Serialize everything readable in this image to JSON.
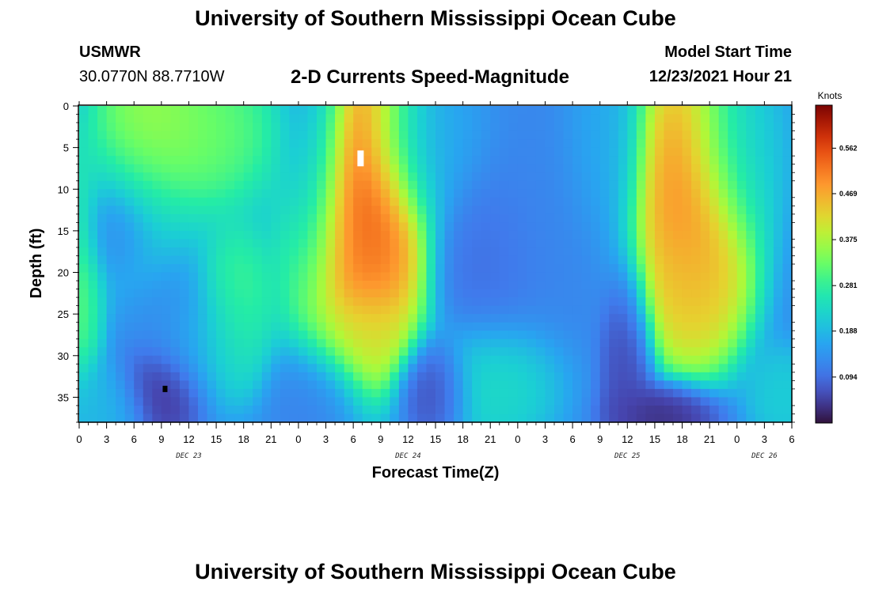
{
  "header": {
    "title": "University of Southern Mississippi Ocean Cube",
    "station": "USMWR",
    "coords": "30.0770N  88.7710W",
    "subtitle": "2-D Currents Speed-Magnitude",
    "start_label": "Model Start Time",
    "start_value": "12/23/2021 Hour 21"
  },
  "footer": {
    "title": "University of Southern Mississippi Ocean Cube"
  },
  "chart_data": {
    "type": "heatmap",
    "xlabel": "Forecast Time(Z)",
    "ylabel": "Depth (ft)",
    "x_range_hours": [
      0,
      78
    ],
    "x_ticks": [
      "0",
      "3",
      "6",
      "9",
      "12",
      "15",
      "18",
      "21",
      "0",
      "3",
      "6",
      "9",
      "12",
      "15",
      "18",
      "21",
      "0",
      "3",
      "6",
      "9",
      "12",
      "15",
      "18",
      "21",
      "0",
      "3",
      "6"
    ],
    "day_labels": [
      {
        "label": "DEC 23",
        "hour": 12
      },
      {
        "label": "DEC 24",
        "hour": 36
      },
      {
        "label": "DEC 25",
        "hour": 60
      },
      {
        "label": "DEC 26",
        "hour": 75
      }
    ],
    "y_range": [
      0,
      38
    ],
    "y_inverted": true,
    "y_ticks": [
      0,
      5,
      10,
      15,
      20,
      25,
      30,
      35
    ],
    "colorbar": {
      "unit": "Knots",
      "range": [
        0,
        0.65
      ],
      "ticks": [
        0.094,
        0.188,
        0.281,
        0.375,
        0.469,
        0.562
      ],
      "tick_labels": [
        "0.094",
        "0.188",
        "0.281",
        "0.375",
        "0.469",
        "0.562"
      ],
      "colormap": "turbo"
    },
    "features": [
      {
        "hour": 8,
        "depth": 4,
        "speed": 0.4,
        "sx": 3.5,
        "sy": 6
      },
      {
        "hour": 14,
        "depth": 3,
        "speed": 0.34,
        "sx": 4,
        "sy": 5
      },
      {
        "hour": 0,
        "depth": 20,
        "speed": 0.34,
        "sx": 1.5,
        "sy": 7
      },
      {
        "hour": 17,
        "depth": 24,
        "speed": 0.32,
        "sx": 2.2,
        "sy": 5
      },
      {
        "hour": 6,
        "depth": 14,
        "speed": 0.19,
        "sx": 4,
        "sy": 6
      },
      {
        "hour": 14,
        "depth": 28,
        "speed": 0.2,
        "sx": 3,
        "sy": 4
      },
      {
        "hour": 3,
        "depth": 36,
        "speed": 0.19,
        "sx": 2.5,
        "sy": 3
      },
      {
        "hour": 4,
        "depth": 15,
        "speed": 0.09,
        "sx": 2,
        "sy": 3
      },
      {
        "hour": 9,
        "depth": 34,
        "speed": 0.02,
        "sx": 2.5,
        "sy": 3
      },
      {
        "hour": 10,
        "depth": 26,
        "speed": 0.12,
        "sx": 3,
        "sy": 4
      },
      {
        "hour": 26,
        "depth": 8,
        "speed": 0.13,
        "sx": 2,
        "sy": 10
      },
      {
        "hour": 26,
        "depth": 34,
        "speed": 0.11,
        "sx": 2.5,
        "sy": 4
      },
      {
        "hour": 31,
        "depth": 10,
        "speed": 0.62,
        "sx": 3.5,
        "sy": 9
      },
      {
        "hour": 30,
        "depth": 20,
        "speed": 0.5,
        "sx": 3.5,
        "sy": 7
      },
      {
        "hour": 30,
        "depth": 27,
        "speed": 0.38,
        "sx": 3,
        "sy": 3
      },
      {
        "hour": 39,
        "depth": 34,
        "speed": 0.05,
        "sx": 2,
        "sy": 3
      },
      {
        "hour": 38,
        "depth": 5,
        "speed": 0.17,
        "sx": 4,
        "sy": 5
      },
      {
        "hour": 46,
        "depth": 33,
        "speed": 0.25,
        "sx": 3.5,
        "sy": 4
      },
      {
        "hour": 45,
        "depth": 18,
        "speed": 0.09,
        "sx": 3,
        "sy": 6
      },
      {
        "hour": 51,
        "depth": 12,
        "speed": 0.12,
        "sx": 4,
        "sy": 10
      },
      {
        "hour": 57,
        "depth": 5,
        "speed": 0.18,
        "sx": 2.5,
        "sy": 6
      },
      {
        "hour": 60,
        "depth": 30,
        "speed": 0.05,
        "sx": 1.5,
        "sy": 6
      },
      {
        "hour": 64,
        "depth": 37,
        "speed": 0.02,
        "sx": 3,
        "sy": 2
      },
      {
        "hour": 67,
        "depth": 10,
        "speed": 0.55,
        "sx": 3.5,
        "sy": 9
      },
      {
        "hour": 67,
        "depth": 22,
        "speed": 0.45,
        "sx": 3,
        "sy": 5
      },
      {
        "hour": 72,
        "depth": 5,
        "speed": 0.2,
        "sx": 3,
        "sy": 6
      },
      {
        "hour": 77,
        "depth": 35,
        "speed": 0.22,
        "sx": 2,
        "sy": 3
      }
    ],
    "markers": [
      {
        "hour": 30.8,
        "depth": 6.3,
        "color": "#ffffff"
      },
      {
        "hour": 9.4,
        "depth": 34,
        "color": "#000000"
      }
    ]
  }
}
